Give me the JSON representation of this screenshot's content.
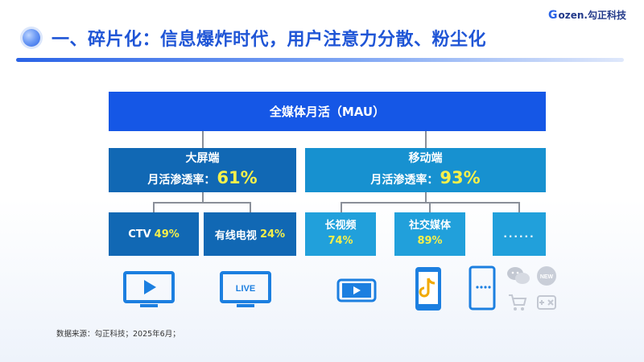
{
  "header": {
    "title": "一、碎片化：信息爆炸时代，用户注意力分散、粉尘化",
    "brand_mark": "G",
    "brand_name": "ozen.勾正科技"
  },
  "diagram": {
    "root": {
      "label": "全媒体月活（MAU）"
    },
    "branches": [
      {
        "name": "大屏端",
        "rate_label": "月活渗透率：",
        "rate_value": "61%",
        "leaves": [
          {
            "name": "CTV",
            "value": "49%",
            "icon": "tv-play-icon"
          },
          {
            "name": "有线电视",
            "value": "24%",
            "icon": "tv-live-icon",
            "icon_text": "LIVE"
          }
        ]
      },
      {
        "name": "移动端",
        "rate_label": "月活渗透率：",
        "rate_value": "93%",
        "leaves": [
          {
            "name": "长视频",
            "value": "74%",
            "icon": "phone-landscape-play-icon"
          },
          {
            "name": "社交媒体",
            "value": "89%",
            "icon": "phone-tiktok-icon"
          },
          {
            "name": "......",
            "value": "",
            "icons": [
              "phone-dots-icon",
              "wechat-icon",
              "new-badge-icon",
              "cart-icon",
              "gamepad-icon"
            ],
            "badge_text": "NEW"
          }
        ]
      }
    ]
  },
  "footer": {
    "source": "数据来源：勾正科技；2025年6月；"
  },
  "colors": {
    "title_blue": "#1f55d6",
    "root_blue": "#1557e6",
    "big_screen_blue": "#1168b4",
    "mobile_blue": "#1791d0",
    "mobile_leaf_blue": "#21a0db",
    "highlight_yellow": "#f6f04a",
    "icon_blue": "#1c7fe0"
  }
}
